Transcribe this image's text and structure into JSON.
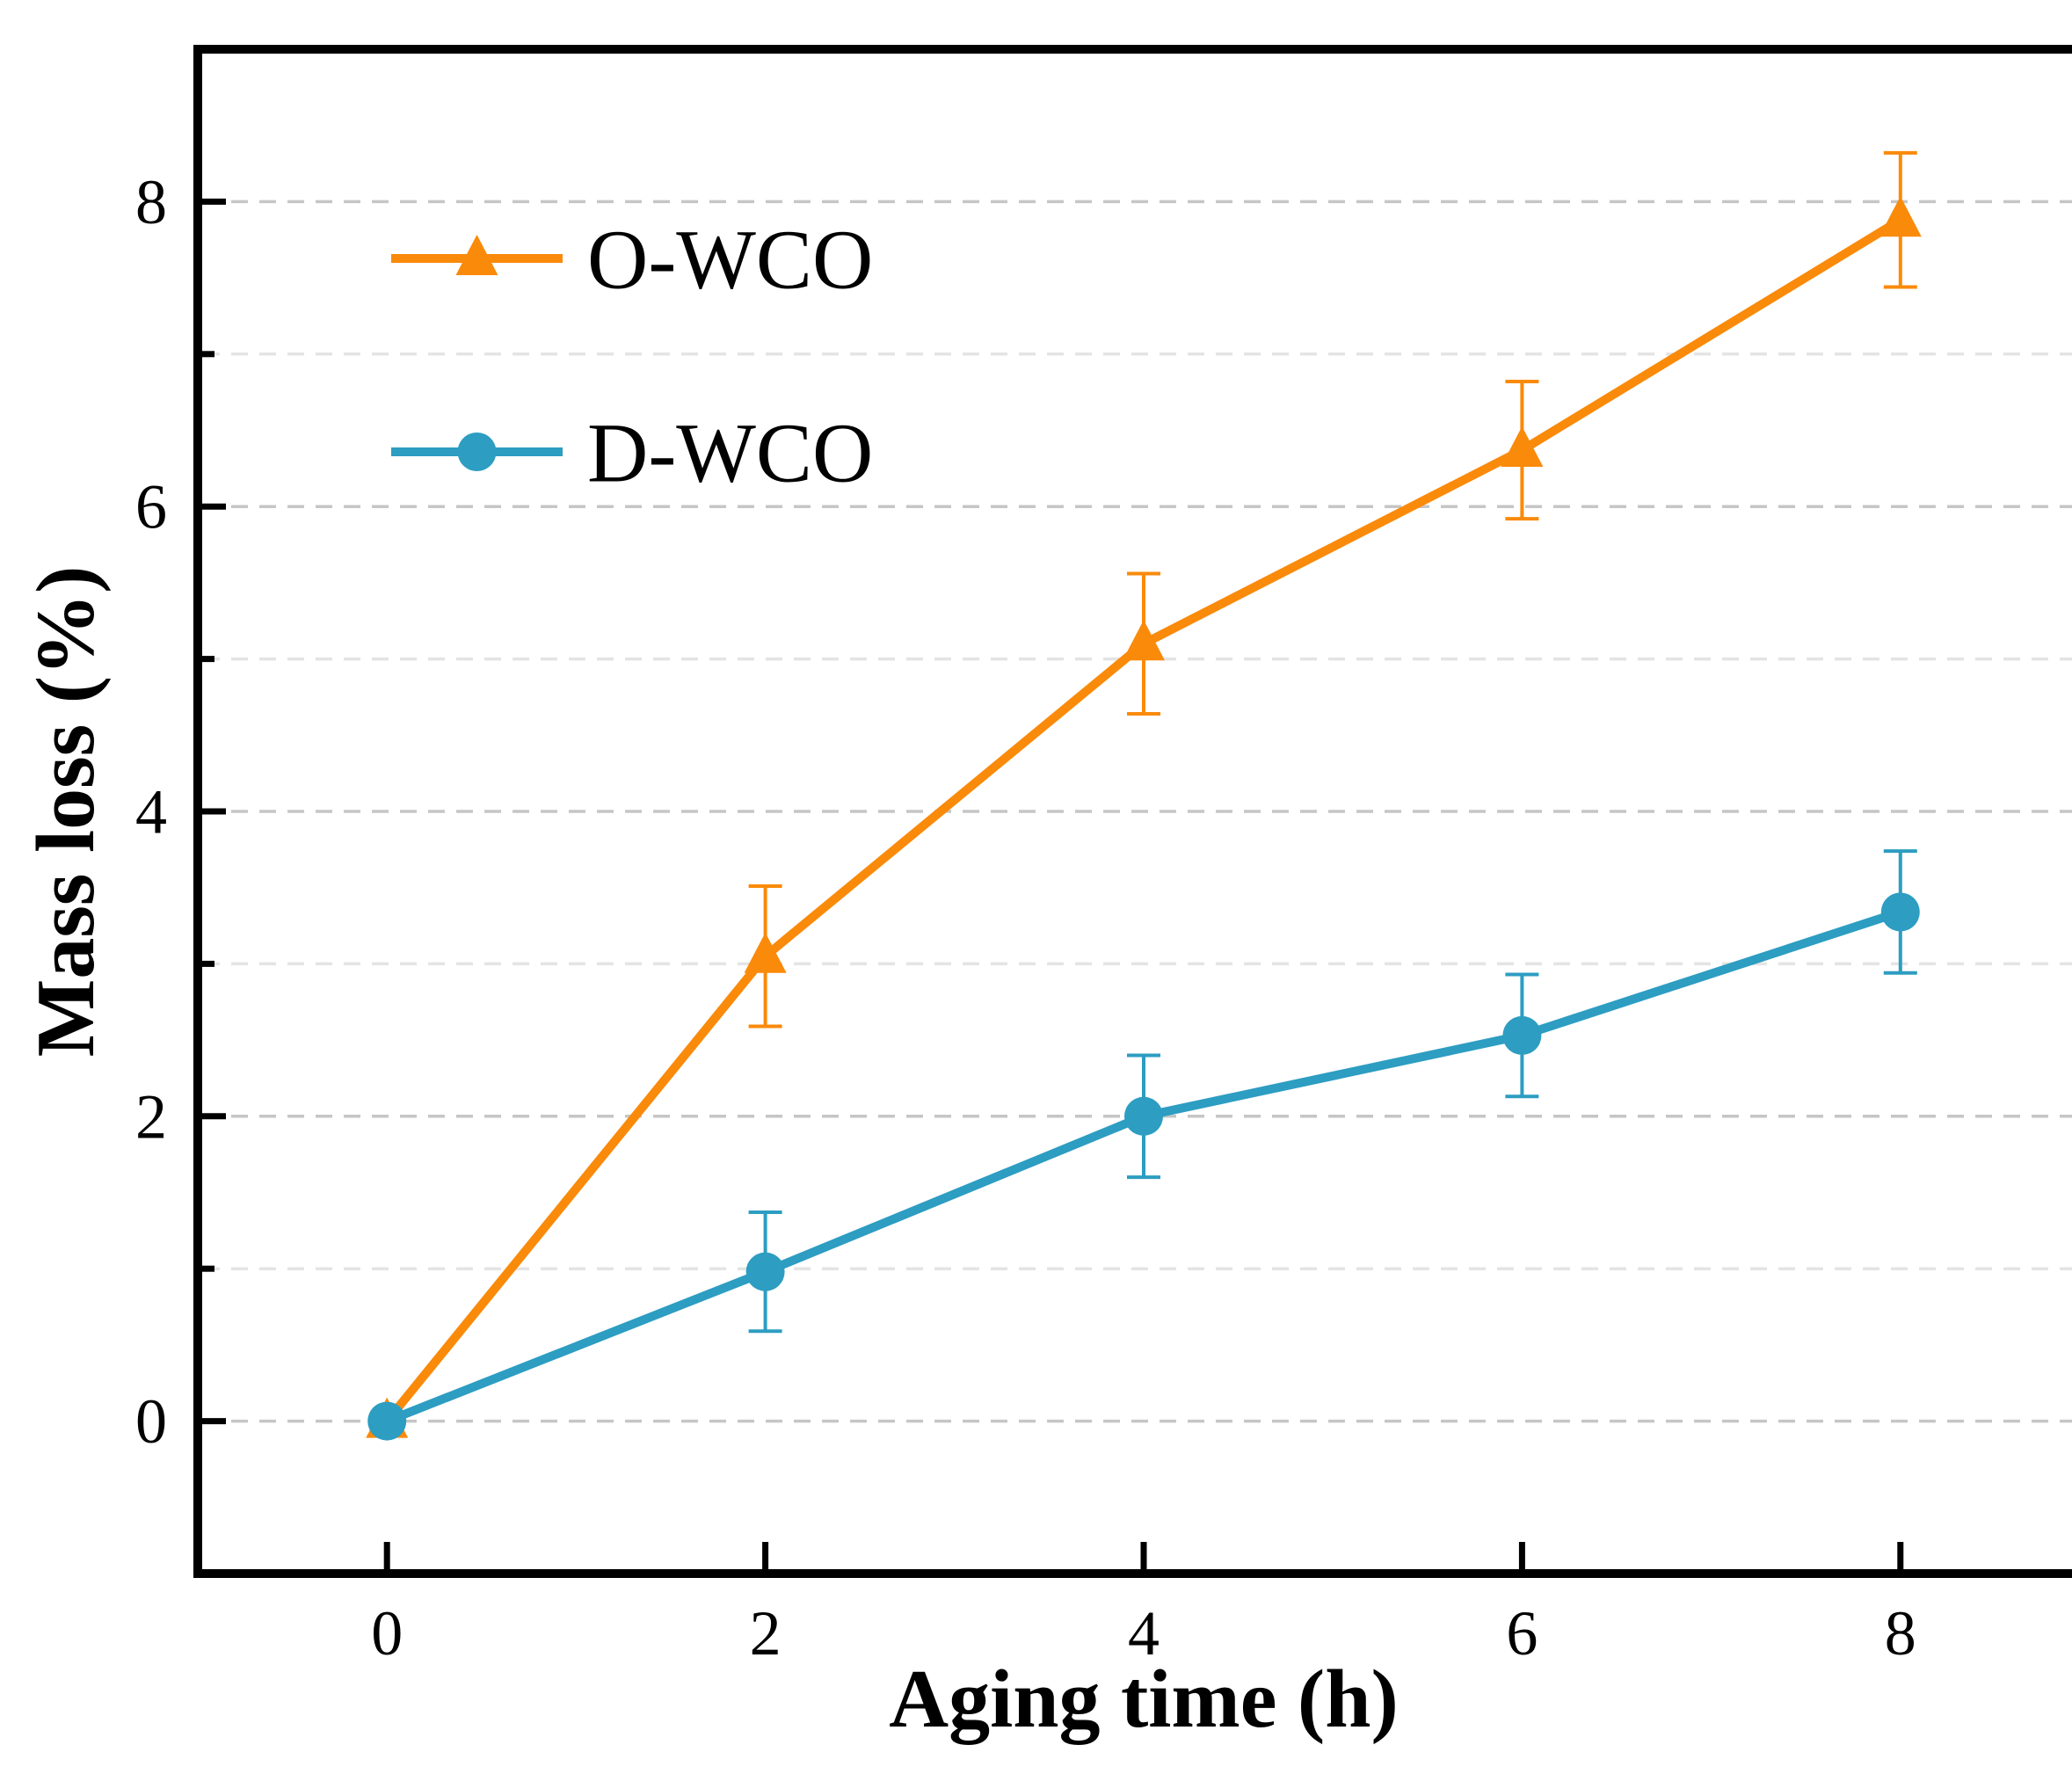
{
  "figure": {
    "background": "#ffffff"
  },
  "chart_data": {
    "type": "line",
    "title": "",
    "xlabel": "Aging time (h)",
    "ylabel": "Mass loss (%)",
    "x": [
      0,
      2,
      4,
      6,
      8
    ],
    "series": [
      {
        "name": "O-WCO",
        "color": "#FA8A0A",
        "marker": "triangle",
        "values": [
          0,
          3.05,
          5.1,
          6.37,
          7.88
        ],
        "errors": [
          0,
          0.46,
          0.46,
          0.45,
          0.44
        ]
      },
      {
        "name": "D-WCO",
        "color": "#2D9DC2",
        "marker": "circle",
        "values": [
          0,
          0.98,
          2.0,
          2.53,
          3.34
        ],
        "errors": [
          0,
          0.39,
          0.4,
          0.4,
          0.4
        ]
      }
    ],
    "xlim": [
      -1,
      9
    ],
    "ylim": [
      -1,
      9
    ],
    "x_ticks": [
      0,
      2,
      4,
      6,
      8
    ],
    "x_tick_labels": [
      "0",
      "2",
      "4",
      "6",
      "8"
    ],
    "y_ticks_major": [
      0,
      2,
      4,
      6,
      8
    ],
    "y_tick_labels": [
      "0",
      "2",
      "4",
      "6",
      "8"
    ],
    "y_ticks_minor": [
      1,
      3,
      5,
      7
    ],
    "y_gridlines": [
      0,
      1,
      2,
      3,
      4,
      5,
      6,
      7,
      8
    ],
    "grid": true,
    "grid_style": "dashed",
    "legend_position": "upper-left",
    "colors": {
      "grid_major": "#c6c6c6",
      "grid_minor": "#e4e4e4",
      "axis": "#000000"
    }
  }
}
